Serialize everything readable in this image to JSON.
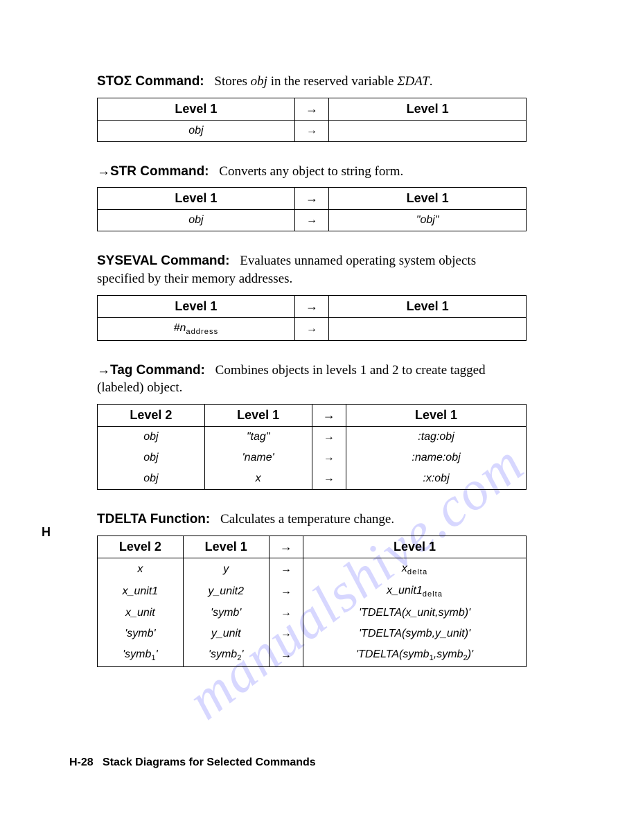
{
  "watermark": "manualshive.com",
  "side_label": "H",
  "footer": {
    "page": "H-28",
    "title": "Stack Diagrams for Selected Commands"
  },
  "sections": [
    {
      "heading_prefix": "STOΣ",
      "heading_suffix": " Command:",
      "desc_parts": [
        "Stores ",
        "obj",
        " in the reserved variable ",
        "ΣDAT",
        "."
      ],
      "table": {
        "headers": [
          "Level 1",
          "→",
          "Level 1"
        ],
        "col_widths": [
          "46%",
          "8%",
          "46%"
        ],
        "rows": [
          [
            "obj",
            "→",
            ""
          ]
        ]
      }
    },
    {
      "heading_prefix": "→STR",
      "heading_suffix": " Command:",
      "desc_parts": [
        "Converts any object to string form."
      ],
      "table": {
        "headers": [
          "Level 1",
          "→",
          "Level 1"
        ],
        "col_widths": [
          "46%",
          "8%",
          "46%"
        ],
        "rows": [
          [
            "obj",
            "→",
            "\"obj\""
          ]
        ]
      }
    },
    {
      "heading_prefix": "SYSEVAL",
      "heading_suffix": " Command:",
      "desc_parts": [
        "Evaluates unnamed operating system objects specified by their memory addresses."
      ],
      "table": {
        "headers": [
          "Level 1",
          "→",
          "Level 1"
        ],
        "col_widths": [
          "46%",
          "8%",
          "46%"
        ],
        "rows": [
          [
            "#n|address",
            "→",
            ""
          ]
        ]
      }
    },
    {
      "heading_prefix": "→Tag",
      "heading_suffix": " Command:",
      "desc_parts": [
        "Combines objects in levels 1 and 2 to create tagged (labeled) object."
      ],
      "table": {
        "headers": [
          "Level 2",
          "Level 1",
          "→",
          "Level 1"
        ],
        "col_widths": [
          "25%",
          "25%",
          "8%",
          "42%"
        ],
        "rows": [
          [
            "obj",
            "\"tag\"",
            "→",
            ":tag:obj"
          ],
          [
            "obj",
            "'name'",
            "→",
            ":name:obj"
          ],
          [
            "obj",
            "x",
            "→",
            ":x:obj"
          ]
        ]
      }
    },
    {
      "heading_prefix": "TDELTA",
      "heading_suffix": " Function:",
      "desc_parts": [
        "Calculates a temperature change."
      ],
      "table": {
        "headers": [
          "Level 2",
          "Level 1",
          "→",
          "Level 1"
        ],
        "col_widths": [
          "20%",
          "20%",
          "8%",
          "52%"
        ],
        "rows": [
          [
            "x",
            "y",
            "→",
            "x|delta"
          ],
          [
            "x_unit1",
            "y_unit2",
            "→",
            "x_unit1|delta"
          ],
          [
            "x_unit",
            "'symb'",
            "→",
            "'TDELTA(x_unit,symb)'"
          ],
          [
            "'symb'",
            "y_unit",
            "→",
            "'TDELTA(symb,y_unit)'"
          ],
          [
            "'symb|1~'",
            "'symb|2~'",
            "→",
            "'TDELTA(symb|1~,symb|2~)'"
          ]
        ]
      }
    }
  ]
}
